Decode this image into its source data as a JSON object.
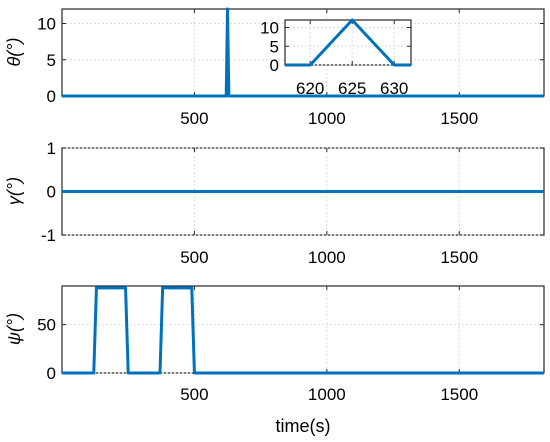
{
  "colors": {
    "series": "#0072BD"
  },
  "chart_data": [
    {
      "type": "line",
      "ylabel": "θ(°)",
      "xlim": [
        0,
        1820
      ],
      "ylim": [
        0,
        12
      ],
      "xticks": [
        500,
        1000,
        1500
      ],
      "xtick_labels": [
        "500",
        "1000",
        "1500"
      ],
      "yticks": [
        0,
        5,
        10
      ],
      "ytick_labels": [
        "0",
        "5",
        "10"
      ],
      "grid": true,
      "series": [
        {
          "x": [
            0,
            620,
            625,
            630,
            1820
          ],
          "y": [
            0,
            0,
            12,
            0,
            0
          ]
        }
      ],
      "inset": {
        "xlim": [
          617,
          632
        ],
        "ylim": [
          0,
          12
        ],
        "xticks": [
          620,
          625,
          630
        ],
        "xtick_labels": [
          "620",
          "625",
          "630"
        ],
        "yticks": [
          0,
          5,
          10
        ],
        "ytick_labels": [
          "0",
          "5",
          "10"
        ],
        "grid": true,
        "series": [
          {
            "x": [
              617,
              620,
              625,
              630,
              632
            ],
            "y": [
              0,
              0,
              12,
              0,
              0
            ]
          }
        ]
      }
    },
    {
      "type": "line",
      "ylabel": "γ(°)",
      "xlim": [
        0,
        1820
      ],
      "ylim": [
        -1,
        1
      ],
      "xticks": [
        500,
        1000,
        1500
      ],
      "xtick_labels": [
        "500",
        "1000",
        "1500"
      ],
      "yticks": [
        -1,
        0,
        1
      ],
      "ytick_labels": [
        "-1",
        "0",
        "1"
      ],
      "grid": true,
      "series": [
        {
          "x": [
            0,
            1820
          ],
          "y": [
            0,
            0
          ]
        }
      ]
    },
    {
      "type": "line",
      "ylabel": "ψ(°)",
      "xlabel": "time(s)",
      "xlim": [
        0,
        1820
      ],
      "ylim": [
        0,
        90
      ],
      "xticks": [
        500,
        1000,
        1500
      ],
      "xtick_labels": [
        "500",
        "1000",
        "1500"
      ],
      "yticks": [
        0,
        50
      ],
      "ytick_labels": [
        "0",
        "50"
      ],
      "grid": true,
      "series": [
        {
          "x": [
            0,
            120,
            130,
            240,
            250,
            370,
            380,
            490,
            500,
            1820
          ],
          "y": [
            0,
            0,
            88,
            88,
            0,
            0,
            88,
            88,
            0,
            0
          ]
        }
      ]
    }
  ]
}
